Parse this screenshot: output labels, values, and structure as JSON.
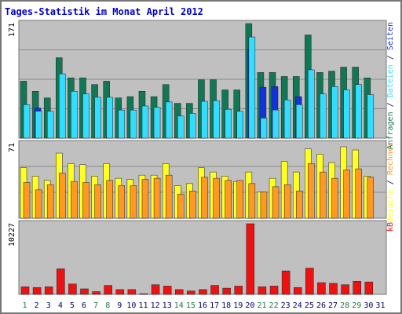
{
  "colors": {
    "frame": "#777777",
    "plot_bg": "#c0c0c0",
    "title": "#0000cc",
    "hits": "#117755",
    "files": "#33ddff",
    "pages": "#1133dd",
    "visits": "#ffff22",
    "sites": "#ff9922",
    "kb": "#ee1111",
    "weekend_day": "#227744",
    "week_day": "#000066"
  },
  "chart_data": {
    "type": "bar",
    "title": "Tages-Statistik im Monat April 2012",
    "categories": [
      "1",
      "2",
      "3",
      "4",
      "5",
      "6",
      "7",
      "8",
      "9",
      "10",
      "11",
      "12",
      "13",
      "14",
      "15",
      "16",
      "17",
      "18",
      "19",
      "20",
      "21",
      "22",
      "23",
      "24",
      "25",
      "26",
      "27",
      "28",
      "29",
      "30",
      "31"
    ],
    "weekend_days": [
      "1",
      "7",
      "8",
      "14",
      "15",
      "21",
      "22",
      "28",
      "29"
    ],
    "panels": [
      {
        "ymax_label": "171",
        "ymax": 171,
        "side_labels": [
          {
            "text": "Anfragen",
            "color": "#117755"
          },
          {
            "text": " / ",
            "color": "#000066"
          },
          {
            "text": "Dateien",
            "color": "#33ddff"
          },
          {
            "text": " / ",
            "color": "#000066"
          },
          {
            "text": "Seiten",
            "color": "#1133dd"
          }
        ],
        "series": [
          {
            "key": "hits",
            "values": [
              85,
              70,
              60,
              120,
              90,
              90,
              80,
              85,
              60,
              62,
              70,
              62,
              80,
              52,
              52,
              87,
              87,
              72,
              72,
              171,
              98,
              98,
              92,
              92,
              154,
              98,
              100,
              106,
              106,
              90,
              0
            ]
          },
          {
            "key": "files",
            "values": [
              50,
              40,
              40,
              96,
              70,
              66,
              61,
              61,
              42,
              42,
              48,
              46,
              54,
              33,
              37,
              55,
              56,
              43,
              40,
              151,
              30,
              42,
              57,
              50,
              102,
              66,
              77,
              72,
              80,
              65,
              0
            ]
          },
          {
            "key": "pages",
            "values": [
              0,
              45,
              0,
              0,
              0,
              0,
              0,
              0,
              0,
              0,
              0,
              0,
              0,
              0,
              0,
              0,
              0,
              0,
              0,
              133,
              76,
              77,
              0,
              62,
              0,
              0,
              0,
              0,
              0,
              0,
              0
            ]
          }
        ]
      },
      {
        "ymax_label": "71",
        "ymax": 71,
        "side_labels": [
          {
            "text": "Besuche",
            "color": "#ffff22"
          },
          {
            "text": " / ",
            "color": "#000066"
          },
          {
            "text": "Rechner",
            "color": "#ff9922"
          }
        ],
        "series": [
          {
            "key": "visits",
            "values": [
              48,
              40,
              36,
              62,
              52,
              51,
              40,
              52,
              38,
              37,
              41,
              41,
              52,
              31,
              33,
              48,
              44,
              40,
              35,
              44,
              25,
              38,
              54,
              44,
              66,
              61,
              53,
              68,
              65,
              40,
              0
            ]
          },
          {
            "key": "sites",
            "values": [
              34,
              27,
              32,
              43,
              35,
              34,
              32,
              36,
              31,
              31,
              37,
              38,
              41,
              23,
              26,
              39,
              38,
              36,
              36,
              33,
              25,
              30,
              32,
              26,
              52,
              44,
              38,
              46,
              47,
              39,
              0
            ]
          }
        ]
      },
      {
        "ymax_label": "10227",
        "ymax": 10227,
        "side_labels": [
          {
            "text": "kB",
            "color": "#ee1111"
          }
        ],
        "series": [
          {
            "key": "kb",
            "values": [
              1100,
              1000,
              1100,
              3700,
              1500,
              800,
              400,
              1300,
              700,
              700,
              100,
              1400,
              1200,
              700,
              500,
              700,
              1300,
              900,
              1200,
              10227,
              1100,
              1200,
              3400,
              1000,
              3800,
              1700,
              1600,
              1400,
              1900,
              1800,
              0
            ]
          }
        ]
      }
    ]
  }
}
